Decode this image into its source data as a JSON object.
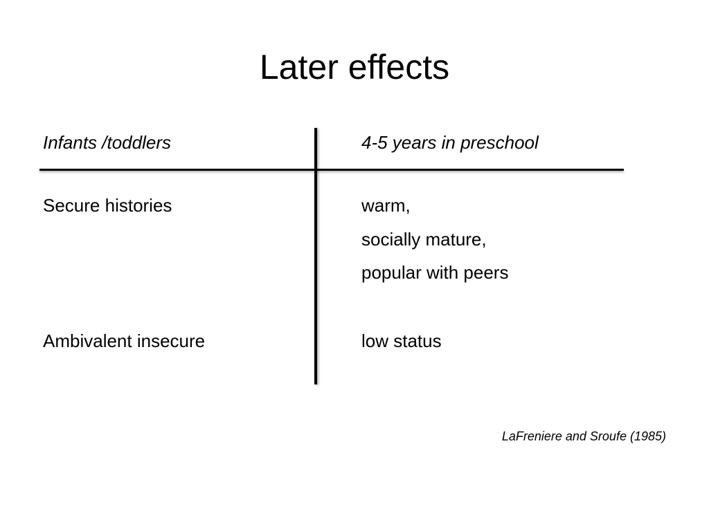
{
  "slide": {
    "title": "Later effects",
    "table": {
      "header_left": "Infants /toddlers",
      "header_right": "4-5 years in preschool",
      "rows": [
        {
          "left": "Secure histories",
          "right": [
            "warm,",
            "socially mature,",
            "popular with peers"
          ]
        },
        {
          "left": "Ambivalent insecure",
          "right": [
            "low status"
          ]
        }
      ]
    },
    "citation": "LaFreniere and Sroufe (1985)"
  }
}
